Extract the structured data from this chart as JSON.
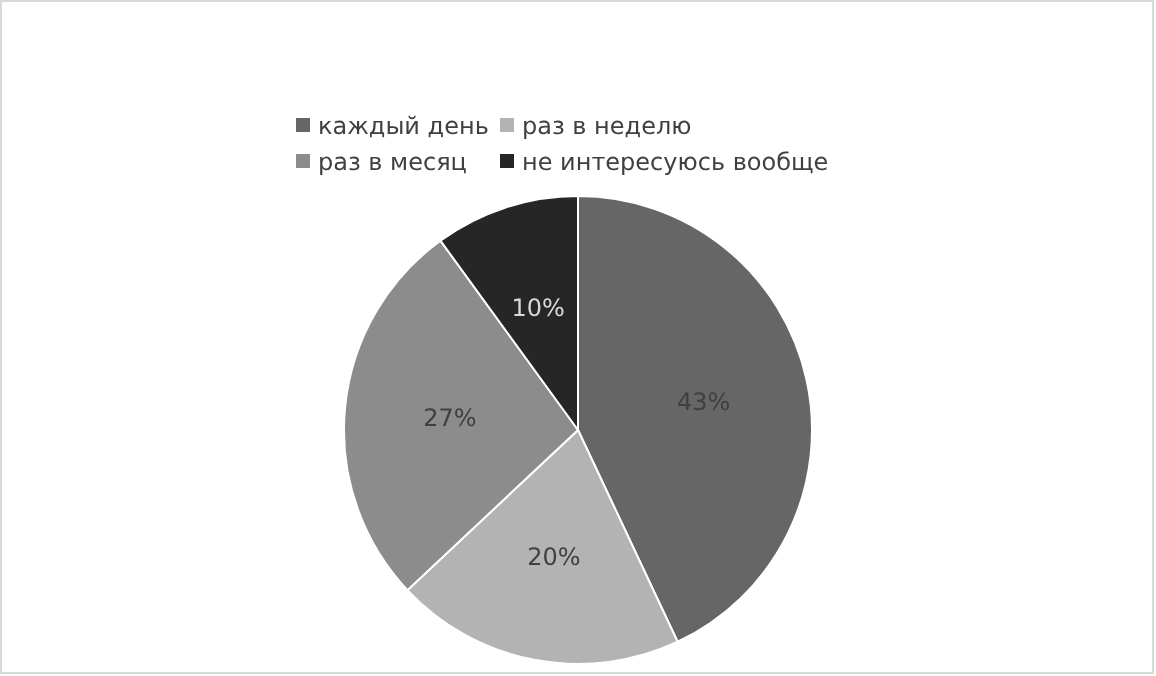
{
  "chart_data": {
    "type": "pie",
    "categories": [
      "каждый день",
      "раз в неделю",
      "раз в месяц",
      "не интересуюсь вообще"
    ],
    "values": [
      43,
      20,
      27,
      10
    ],
    "colors": [
      "#666666",
      "#b3b3b3",
      "#8c8c8c",
      "#262626"
    ],
    "value_labels": [
      "43%",
      "20%",
      "27%",
      "10%"
    ],
    "legend": "top"
  }
}
